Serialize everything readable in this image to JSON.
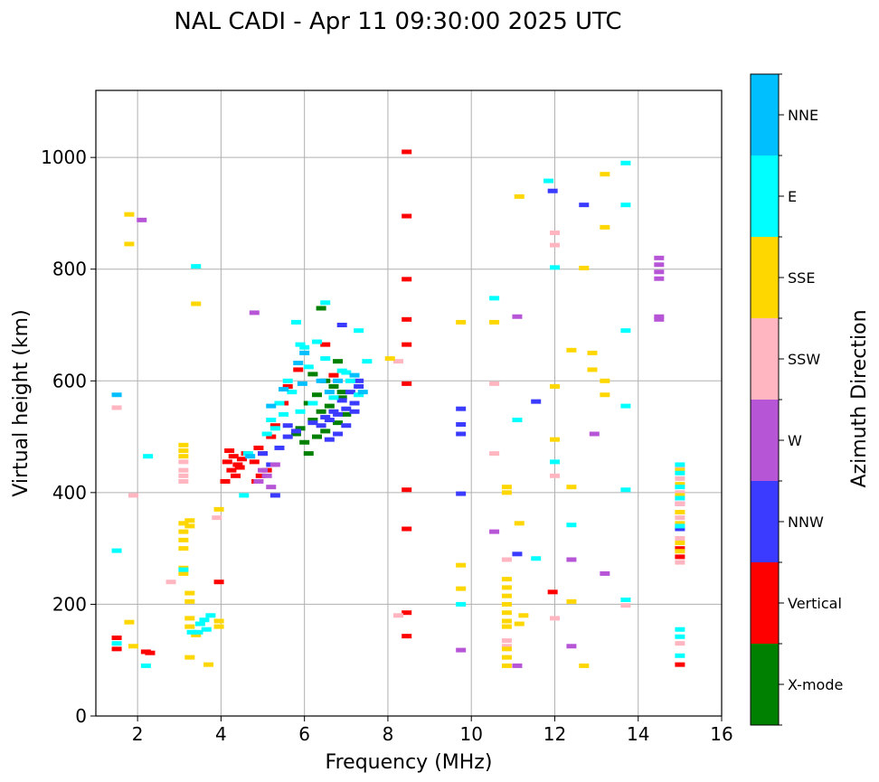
{
  "chart_data": {
    "type": "scatter",
    "title": "NAL CADI - Apr 11 09:30:00 2025 UTC",
    "xlabel": "Frequency (MHz)",
    "ylabel": "Virtual height (km)",
    "xlim": [
      1,
      16
    ],
    "ylim": [
      0,
      1120
    ],
    "xticks": [
      2,
      4,
      6,
      8,
      10,
      12,
      14,
      16
    ],
    "yticks": [
      0,
      200,
      400,
      600,
      800,
      1000
    ],
    "grid": true,
    "colorbar": {
      "label": "Azimuth Direction",
      "categories": [
        "X-mode",
        "Vertical",
        "NNW",
        "W",
        "SSW",
        "SSE",
        "E",
        "NNE"
      ],
      "colors": [
        "#008000",
        "#ff0000",
        "#3b3bff",
        "#b755d7",
        "#ffb6c1",
        "#ffd700",
        "#00ffff",
        "#00bfff"
      ]
    },
    "series": [
      {
        "name": "X-mode",
        "points": [
          [
            6.4,
            730
          ],
          [
            6.8,
            635
          ],
          [
            6.2,
            612
          ],
          [
            6.5,
            600
          ],
          [
            6.7,
            590
          ],
          [
            6.3,
            575
          ],
          [
            6.9,
            570
          ],
          [
            6.1,
            560
          ],
          [
            6.6,
            555
          ],
          [
            6.4,
            545
          ],
          [
            7.0,
            540
          ],
          [
            6.2,
            530
          ],
          [
            6.8,
            525
          ],
          [
            5.9,
            515
          ],
          [
            6.5,
            510
          ],
          [
            6.3,
            500
          ],
          [
            6.0,
            490
          ],
          [
            6.1,
            470
          ],
          [
            5.8,
            505
          ],
          [
            6.9,
            580
          ]
        ]
      },
      {
        "name": "Vertical",
        "points": [
          [
            8.45,
            1010
          ],
          [
            8.45,
            895
          ],
          [
            8.45,
            782
          ],
          [
            8.45,
            710
          ],
          [
            8.45,
            665
          ],
          [
            8.45,
            595
          ],
          [
            8.45,
            405
          ],
          [
            8.45,
            335
          ],
          [
            8.45,
            185
          ],
          [
            8.45,
            143
          ],
          [
            4.2,
            475
          ],
          [
            4.3,
            465
          ],
          [
            4.15,
            455
          ],
          [
            4.4,
            450
          ],
          [
            4.25,
            440
          ],
          [
            4.5,
            460
          ],
          [
            4.35,
            430
          ],
          [
            4.1,
            420
          ],
          [
            4.45,
            445
          ],
          [
            4.6,
            470
          ],
          [
            4.9,
            480
          ],
          [
            5.0,
            470
          ],
          [
            4.8,
            455
          ],
          [
            5.1,
            440
          ],
          [
            4.95,
            430
          ],
          [
            4.85,
            420
          ],
          [
            5.2,
            500
          ],
          [
            5.3,
            520
          ],
          [
            5.5,
            560
          ],
          [
            5.6,
            590
          ],
          [
            6.5,
            665
          ],
          [
            6.7,
            610
          ],
          [
            5.85,
            620
          ],
          [
            2.2,
            115
          ],
          [
            2.3,
            113
          ],
          [
            1.5,
            140
          ],
          [
            1.5,
            120
          ],
          [
            3.95,
            240
          ],
          [
            11.95,
            222
          ],
          [
            15.0,
            285
          ],
          [
            15.0,
            92
          ],
          [
            15.0,
            300
          ]
        ]
      },
      {
        "name": "NNW",
        "points": [
          [
            5.4,
            480
          ],
          [
            5.6,
            500
          ],
          [
            5.8,
            510
          ],
          [
            6.2,
            525
          ],
          [
            6.4,
            520
          ],
          [
            6.6,
            530
          ],
          [
            6.8,
            540
          ],
          [
            7.0,
            550
          ],
          [
            7.2,
            560
          ],
          [
            7.3,
            590
          ],
          [
            7.1,
            580
          ],
          [
            6.9,
            565
          ],
          [
            6.7,
            545
          ],
          [
            6.5,
            535
          ],
          [
            7.2,
            545
          ],
          [
            7.0,
            520
          ],
          [
            6.8,
            505
          ],
          [
            6.6,
            495
          ],
          [
            7.3,
            600
          ],
          [
            6.9,
            700
          ],
          [
            5.3,
            395
          ],
          [
            5.2,
            450
          ],
          [
            5.0,
            470
          ],
          [
            5.6,
            520
          ],
          [
            11.95,
            940
          ],
          [
            12.7,
            915
          ],
          [
            11.55,
            563
          ],
          [
            11.1,
            290
          ],
          [
            9.75,
            550
          ],
          [
            9.75,
            522
          ],
          [
            9.75,
            505
          ],
          [
            9.75,
            398
          ],
          [
            15.0,
            335
          ]
        ]
      },
      {
        "name": "W",
        "points": [
          [
            14.5,
            820
          ],
          [
            14.5,
            808
          ],
          [
            14.5,
            795
          ],
          [
            14.5,
            783
          ],
          [
            14.5,
            715
          ],
          [
            14.5,
            710
          ],
          [
            13.2,
            255
          ],
          [
            12.95,
            505
          ],
          [
            12.4,
            280
          ],
          [
            12.4,
            125
          ],
          [
            11.1,
            715
          ],
          [
            11.1,
            90
          ],
          [
            10.55,
            330
          ],
          [
            9.75,
            118
          ],
          [
            5.0,
            440
          ],
          [
            5.1,
            430
          ],
          [
            4.9,
            420
          ],
          [
            5.2,
            410
          ],
          [
            5.3,
            450
          ],
          [
            2.1,
            888
          ],
          [
            4.8,
            722
          ],
          [
            15.0,
            380
          ]
        ]
      },
      {
        "name": "SSW",
        "points": [
          [
            3.1,
            455
          ],
          [
            3.1,
            440
          ],
          [
            3.1,
            430
          ],
          [
            3.1,
            420
          ],
          [
            3.9,
            355
          ],
          [
            10.55,
            595
          ],
          [
            10.55,
            470
          ],
          [
            10.85,
            280
          ],
          [
            10.85,
            135
          ],
          [
            10.85,
            125
          ],
          [
            12.0,
            865
          ],
          [
            12.0,
            843
          ],
          [
            12.0,
            430
          ],
          [
            12.0,
            175
          ],
          [
            13.7,
            198
          ],
          [
            8.25,
            635
          ],
          [
            8.25,
            180
          ],
          [
            15.0,
            445
          ],
          [
            15.0,
            425
          ],
          [
            15.0,
            400
          ],
          [
            15.0,
            380
          ],
          [
            15.0,
            355
          ],
          [
            15.0,
            318
          ],
          [
            15.0,
            275
          ],
          [
            15.0,
            130
          ],
          [
            1.5,
            552
          ],
          [
            1.9,
            395
          ],
          [
            2.8,
            240
          ]
        ]
      },
      {
        "name": "SSE",
        "points": [
          [
            3.1,
            485
          ],
          [
            3.1,
            475
          ],
          [
            3.1,
            465
          ],
          [
            3.1,
            345
          ],
          [
            3.1,
            330
          ],
          [
            3.1,
            315
          ],
          [
            3.1,
            300
          ],
          [
            3.1,
            265
          ],
          [
            3.1,
            255
          ],
          [
            3.25,
            350
          ],
          [
            3.25,
            340
          ],
          [
            3.25,
            220
          ],
          [
            3.25,
            205
          ],
          [
            3.25,
            175
          ],
          [
            3.25,
            160
          ],
          [
            3.25,
            105
          ],
          [
            3.4,
            738
          ],
          [
            3.4,
            145
          ],
          [
            3.95,
            370
          ],
          [
            3.95,
            170
          ],
          [
            3.95,
            160
          ],
          [
            3.7,
            92
          ],
          [
            10.85,
            410
          ],
          [
            10.85,
            400
          ],
          [
            10.85,
            245
          ],
          [
            10.85,
            230
          ],
          [
            10.85,
            215
          ],
          [
            10.85,
            200
          ],
          [
            10.85,
            185
          ],
          [
            10.85,
            170
          ],
          [
            10.85,
            160
          ],
          [
            10.85,
            120
          ],
          [
            10.85,
            105
          ],
          [
            10.85,
            90
          ],
          [
            11.15,
            345
          ],
          [
            11.15,
            165
          ],
          [
            11.25,
            180
          ],
          [
            12.4,
            655
          ],
          [
            12.4,
            410
          ],
          [
            12.4,
            205
          ],
          [
            12.9,
            650
          ],
          [
            12.9,
            620
          ],
          [
            13.2,
            970
          ],
          [
            13.2,
            875
          ],
          [
            13.2,
            600
          ],
          [
            13.2,
            575
          ],
          [
            12.0,
            590
          ],
          [
            12.0,
            495
          ],
          [
            12.7,
            802
          ],
          [
            12.7,
            90
          ],
          [
            11.15,
            930
          ],
          [
            10.55,
            705
          ],
          [
            9.75,
            705
          ],
          [
            9.75,
            270
          ],
          [
            9.75,
            228
          ],
          [
            8.05,
            640
          ],
          [
            15.0,
            440
          ],
          [
            15.0,
            415
          ],
          [
            15.0,
            395
          ],
          [
            15.0,
            365
          ],
          [
            15.0,
            345
          ],
          [
            15.0,
            310
          ],
          [
            15.0,
            295
          ],
          [
            1.8,
            845
          ],
          [
            1.8,
            898
          ],
          [
            1.8,
            168
          ],
          [
            1.9,
            125
          ]
        ]
      },
      {
        "name": "E",
        "points": [
          [
            13.7,
            990
          ],
          [
            13.7,
            915
          ],
          [
            13.7,
            690
          ],
          [
            13.7,
            555
          ],
          [
            13.7,
            405
          ],
          [
            13.7,
            208
          ],
          [
            12.4,
            342
          ],
          [
            11.85,
            958
          ],
          [
            11.1,
            530
          ],
          [
            10.55,
            748
          ],
          [
            9.75,
            200
          ],
          [
            11.55,
            282
          ],
          [
            12.0,
            803
          ],
          [
            12.0,
            455
          ],
          [
            5.9,
            665
          ],
          [
            6.3,
            670
          ],
          [
            6.5,
            640
          ],
          [
            7.3,
            690
          ],
          [
            7.5,
            635
          ],
          [
            6.1,
            625
          ],
          [
            6.9,
            618
          ],
          [
            5.6,
            600
          ],
          [
            5.7,
            580
          ],
          [
            5.4,
            560
          ],
          [
            5.2,
            530
          ],
          [
            5.5,
            540
          ],
          [
            5.3,
            515
          ],
          [
            5.1,
            505
          ],
          [
            5.9,
            545
          ],
          [
            6.2,
            560
          ],
          [
            6.7,
            570
          ],
          [
            7.1,
            600
          ],
          [
            7.3,
            575
          ],
          [
            7.0,
            615
          ],
          [
            6.0,
            660
          ],
          [
            5.8,
            705
          ],
          [
            6.5,
            740
          ],
          [
            3.4,
            805
          ],
          [
            3.1,
            262
          ],
          [
            3.75,
            180
          ],
          [
            3.6,
            172
          ],
          [
            3.5,
            165
          ],
          [
            3.3,
            150
          ],
          [
            3.45,
            150
          ],
          [
            3.65,
            155
          ],
          [
            4.65,
            470
          ],
          [
            4.55,
            395
          ],
          [
            2.25,
            465
          ],
          [
            1.5,
            296
          ],
          [
            1.5,
            130
          ],
          [
            2.2,
            90
          ],
          [
            15.0,
            450
          ],
          [
            15.0,
            435
          ],
          [
            15.0,
            410
          ],
          [
            15.0,
            390
          ],
          [
            15.0,
            340
          ],
          [
            15.0,
            155
          ],
          [
            15.0,
            142
          ],
          [
            15.0,
            108
          ]
        ]
      },
      {
        "name": "NNE",
        "points": [
          [
            5.85,
            632
          ],
          [
            6.0,
            650
          ],
          [
            6.4,
            600
          ],
          [
            6.8,
            600
          ],
          [
            7.2,
            610
          ],
          [
            5.5,
            585
          ],
          [
            5.95,
            595
          ],
          [
            6.6,
            580
          ],
          [
            7.4,
            580
          ],
          [
            5.2,
            555
          ],
          [
            4.7,
            465
          ],
          [
            1.5,
            575
          ]
        ]
      }
    ]
  }
}
